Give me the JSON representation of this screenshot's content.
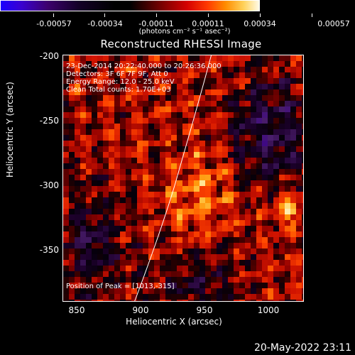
{
  "colorbar": {
    "ticks": [
      "-0.00057",
      "-0.00034",
      "-0.00011",
      "0.00011",
      "0.00034",
      "0.00057"
    ],
    "units": "(photons cm⁻² s⁻¹ asec⁻²)"
  },
  "plot": {
    "title": "Reconstructed RHESSI Image",
    "info_lines": [
      "23-Dec-2014 20:22:40.000 to 20:26:36.000",
      "Detectors: 3F 6F 7F 9F, Att 0",
      "Energy Range: 12.0 - 25.0 keV",
      "Clean     Total counts: 1.70E+03"
    ],
    "peak_label": "Position of Peak = [1013,-315]",
    "xlabel": "Heliocentric X (arcsec)",
    "ylabel": "Heliocentric Y (arcsec)",
    "xticks": [
      "850",
      "900",
      "950",
      "1000"
    ],
    "yticks": [
      "-200",
      "-250",
      "-300",
      "-350"
    ],
    "limb_color": "#ffffff",
    "colormap_accent": [
      "#1a00ff",
      "#3d006e",
      "#000000",
      "#d40000",
      "#ff8c00",
      "#fffbe8"
    ]
  },
  "chart_data": {
    "type": "heatmap",
    "title": "Reconstructed RHESSI Image",
    "xlabel": "Heliocentric X (arcsec)",
    "ylabel": "Heliocentric Y (arcsec)",
    "xlim": [
      832,
      1025
    ],
    "ylim": [
      -388,
      -196
    ],
    "value_range": [
      -0.00057,
      0.00057
    ],
    "peak": [
      1013,
      -315
    ]
  },
  "timestamp": "20-May-2022 23:11"
}
